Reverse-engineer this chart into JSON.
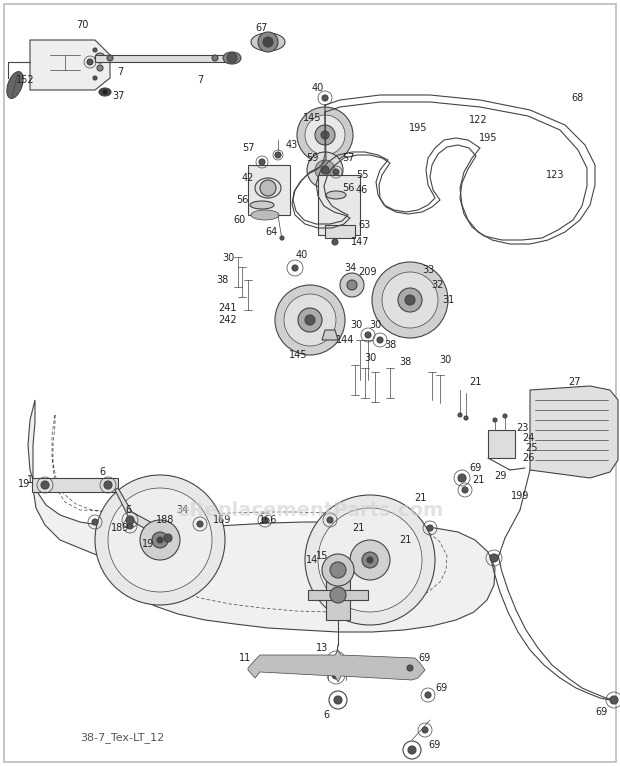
{
  "bg": "#ffffff",
  "border": "#bbbbbb",
  "lc": "#444444",
  "lc2": "#666666",
  "label_color": "#222222",
  "label_fs": 7,
  "watermark": "eReplacementParts.com",
  "wm_color": "#d0d0d0",
  "wm_fs": 14,
  "bottom_label": "38-7_Tex-LT_12",
  "figw": 6.2,
  "figh": 7.66,
  "dpi": 100
}
